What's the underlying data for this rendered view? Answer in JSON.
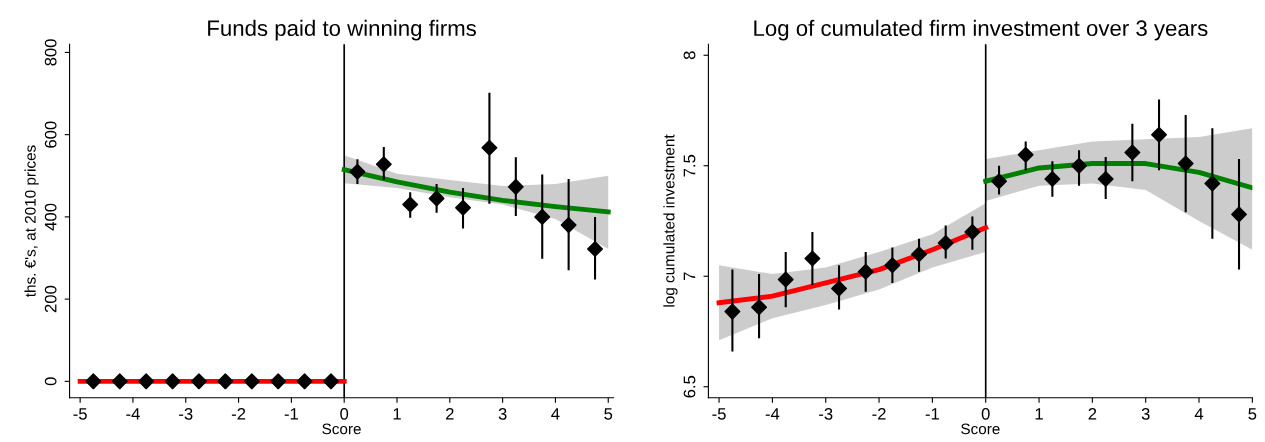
{
  "chart_data": [
    {
      "type": "scatter",
      "title": "Funds paid to winning firms",
      "xlabel": "Score",
      "ylabel": "ths. €'s, at 2010 prices",
      "xlim": [
        -5.2,
        5.1
      ],
      "xticks": [
        -5,
        -4,
        -3,
        -2,
        -1,
        0,
        1,
        2,
        3,
        4,
        5
      ],
      "ylim": [
        -40,
        820
      ],
      "yticks": [
        0,
        200,
        400,
        600,
        800
      ],
      "grid": false,
      "ref_lines": [
        {
          "axis": "x",
          "value": 0,
          "color": "#000000"
        }
      ],
      "series": [
        {
          "type": "line",
          "color": "#ff0000",
          "x": [
            -5,
            0
          ],
          "values": [
            0,
            0
          ]
        },
        {
          "type": "line",
          "color": "#008000",
          "x": [
            0,
            1,
            2,
            3,
            4,
            5
          ],
          "values": [
            515,
            485,
            460,
            440,
            425,
            412
          ],
          "lower": [
            482,
            470,
            448,
            430,
            395,
            322
          ],
          "upper": [
            550,
            505,
            490,
            475,
            480,
            500
          ]
        },
        {
          "marker": "diamond",
          "color": "#000000",
          "x": [
            -4.75,
            -4.25,
            -3.75,
            -3.25,
            -2.75,
            -2.25,
            -1.75,
            -1.25,
            -0.75,
            -0.25,
            0.25,
            0.75,
            1.25,
            1.75,
            2.25,
            2.75,
            3.25,
            3.75,
            4.25,
            4.75
          ],
          "values": [
            0,
            0,
            0,
            0,
            0,
            0,
            0,
            0,
            0,
            0,
            510,
            528,
            430,
            445,
            422,
            568,
            473,
            400,
            380,
            322
          ],
          "errors": [
            null,
            null,
            null,
            null,
            null,
            null,
            null,
            null,
            null,
            null,
            [
              480,
              540
            ],
            [
              490,
              570
            ],
            [
              398,
              460
            ],
            [
              410,
              480
            ],
            [
              372,
              470
            ],
            [
              432,
              702
            ],
            [
              402,
              545
            ],
            [
              298,
              503
            ],
            [
              270,
              492
            ],
            [
              248,
              400
            ]
          ]
        }
      ]
    },
    {
      "type": "scatter",
      "title": "Log of cumulated firm investment over 3 years",
      "xlabel": "Score",
      "ylabel": "log cumulated investment",
      "xlim": [
        -5.2,
        5
      ],
      "xticks": [
        -5,
        -4,
        -3,
        -2,
        -1,
        0,
        1,
        2,
        3,
        4,
        5
      ],
      "ylim": [
        6.45,
        8.05
      ],
      "yticks": [
        6.5,
        7,
        7.5,
        8
      ],
      "grid": false,
      "ref_lines": [
        {
          "axis": "x",
          "value": 0,
          "color": "#000000"
        }
      ],
      "series": [
        {
          "type": "line",
          "color": "#ff0000",
          "x": [
            -5,
            -4,
            -3,
            -2,
            -1,
            0
          ],
          "values": [
            6.88,
            6.91,
            6.97,
            7.03,
            7.12,
            7.22
          ],
          "lower": [
            6.71,
            6.81,
            6.87,
            6.94,
            7.04,
            7.11
          ],
          "upper": [
            7.05,
            7.01,
            7.04,
            7.11,
            7.19,
            7.33
          ]
        },
        {
          "type": "line",
          "color": "#008000",
          "x": [
            0,
            1,
            2,
            3,
            4,
            5
          ],
          "values": [
            7.43,
            7.49,
            7.51,
            7.51,
            7.47,
            7.4
          ],
          "lower": [
            7.34,
            7.41,
            7.42,
            7.39,
            7.25,
            7.12
          ],
          "upper": [
            7.53,
            7.57,
            7.61,
            7.62,
            7.63,
            7.67
          ]
        },
        {
          "marker": "diamond",
          "color": "#000000",
          "x": [
            -4.75,
            -4.25,
            -3.75,
            -3.25,
            -2.75,
            -2.25,
            -1.75,
            -1.25,
            -0.75,
            -0.25,
            0.25,
            0.75,
            1.25,
            1.75,
            2.25,
            2.75,
            3.25,
            3.75,
            4.25,
            4.75
          ],
          "values": [
            6.84,
            6.86,
            6.985,
            7.08,
            6.945,
            7.02,
            7.05,
            7.1,
            7.15,
            7.2,
            7.43,
            7.55,
            7.44,
            7.5,
            7.44,
            7.56,
            7.64,
            7.51,
            7.42,
            7.28
          ],
          "errors": [
            [
              6.66,
              7.03
            ],
            [
              6.72,
              7.01
            ],
            [
              6.86,
              7.11
            ],
            [
              6.96,
              7.2
            ],
            [
              6.85,
              7.05
            ],
            [
              6.93,
              7.11
            ],
            [
              6.97,
              7.13
            ],
            [
              7.02,
              7.17
            ],
            [
              7.08,
              7.23
            ],
            [
              7.12,
              7.27
            ],
            [
              7.37,
              7.5
            ],
            [
              7.48,
              7.61
            ],
            [
              7.36,
              7.52
            ],
            [
              7.41,
              7.57
            ],
            [
              7.35,
              7.54
            ],
            [
              7.43,
              7.69
            ],
            [
              7.48,
              7.8
            ],
            [
              7.29,
              7.73
            ],
            [
              7.17,
              7.67
            ],
            [
              7.03,
              7.53
            ]
          ]
        }
      ]
    }
  ]
}
